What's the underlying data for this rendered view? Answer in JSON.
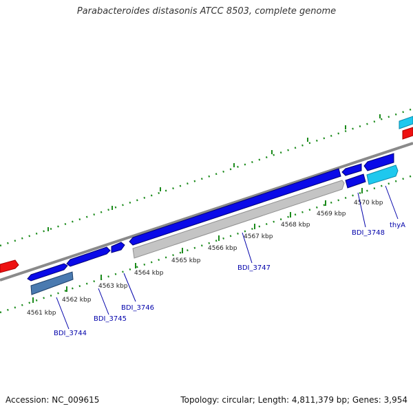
{
  "title": "Parabacteroides distasonis ATCC 8503, complete genome",
  "footer": {
    "accession": "Accession: NC_009615",
    "summary": "Topology: circular; Length: 4,811,379 bp; Genes: 3,954"
  },
  "scale_labels": [
    "4561 kbp",
    "4562 kbp",
    "4563 kbp",
    "4564 kbp",
    "4565 kbp",
    "4566 kbp",
    "4567 kbp",
    "4568 kbp",
    "4569 kbp",
    "4570 kbp"
  ],
  "gene_labels": [
    "BDI_3744",
    "BDI_3745",
    "BDI_3746",
    "BDI_3747",
    "BDI_3748",
    "thyA"
  ],
  "colors": {
    "cds_blue": "#0a0ae8",
    "steel_blue": "#4a7ab0",
    "gray_feature": "#c4c4c4",
    "cyan_feature": "#1ec8ee",
    "red_feature": "#ee1111",
    "backbone": "#888888",
    "tick_green": "#1a8a1a",
    "label_blue": "#0000aa"
  }
}
